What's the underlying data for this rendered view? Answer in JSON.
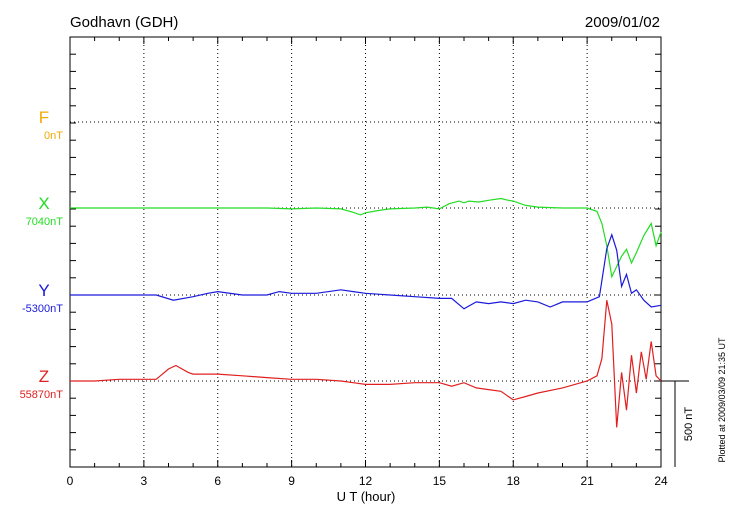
{
  "header": {
    "station": "Godhavn (GDH)",
    "date": "2009/01/02"
  },
  "footer": {
    "plotted_note": "Plotted at 2009/03/09 21:35 UT"
  },
  "chart_data": {
    "type": "line",
    "title": "Godhavn (GDH)",
    "date": "2009/01/02",
    "xlabel": "U T (hour)",
    "xlim": [
      0,
      24
    ],
    "xticks": [
      0,
      3,
      6,
      9,
      12,
      15,
      18,
      21,
      24
    ],
    "grid": true,
    "scale_bar_label": "500 nT",
    "scale_bar_nT": 500,
    "colors": {
      "F": "#f2a900",
      "X": "#22dd22",
      "Y": "#1a1adc",
      "Z": "#e02020"
    },
    "series": [
      {
        "name": "F",
        "baseline_label": "0nT",
        "baseline_nT": 0,
        "color": "#f2a900",
        "x": [],
        "values": []
      },
      {
        "name": "X",
        "baseline_label": "7040nT",
        "baseline_nT": 7040,
        "color": "#22dd22",
        "x": [
          0,
          1,
          2,
          3,
          4,
          5,
          6,
          7,
          8,
          9,
          10,
          11,
          11.5,
          11.8,
          12,
          12.5,
          13,
          14,
          14.5,
          15,
          15.4,
          15.8,
          16,
          16.2,
          16.6,
          17,
          17.5,
          17.8,
          18,
          18.5,
          19,
          20,
          21,
          21.4,
          21.6,
          21.8,
          22,
          22.2,
          22.4,
          22.6,
          22.8,
          23,
          23.3,
          23.6,
          23.8,
          24
        ],
        "values": [
          7040,
          7040,
          7040,
          7040,
          7040,
          7040,
          7040,
          7040,
          7040,
          7035,
          7040,
          7035,
          7015,
          7000,
          7012,
          7025,
          7035,
          7040,
          7045,
          7035,
          7065,
          7080,
          7070,
          7080,
          7075,
          7085,
          7095,
          7085,
          7080,
          7055,
          7045,
          7040,
          7040,
          7020,
          6950,
          6820,
          6640,
          6700,
          6760,
          6800,
          6720,
          6780,
          6880,
          6950,
          6820,
          6900
        ]
      },
      {
        "name": "Y",
        "baseline_label": "-5300nT",
        "baseline_nT": -5300,
        "color": "#1a1adc",
        "x": [
          0,
          2,
          3.5,
          4.2,
          5,
          5.6,
          6,
          7,
          8,
          8.5,
          9,
          10,
          11,
          11.5,
          12,
          13,
          14,
          15,
          15.5,
          16,
          16.5,
          17,
          17.5,
          18,
          18.5,
          19,
          19.5,
          20,
          21,
          21.5,
          21.8,
          22,
          22.2,
          22.4,
          22.6,
          22.8,
          23,
          23.3,
          23.6,
          24
        ],
        "values": [
          -5300,
          -5300,
          -5300,
          -5330,
          -5310,
          -5290,
          -5280,
          -5300,
          -5300,
          -5280,
          -5290,
          -5290,
          -5270,
          -5280,
          -5290,
          -5300,
          -5310,
          -5320,
          -5320,
          -5380,
          -5340,
          -5350,
          -5340,
          -5350,
          -5330,
          -5340,
          -5370,
          -5340,
          -5340,
          -5310,
          -5030,
          -4950,
          -5040,
          -5250,
          -5180,
          -5290,
          -5270,
          -5330,
          -5370,
          -5360
        ]
      },
      {
        "name": "Z",
        "baseline_label": "55870nT",
        "baseline_nT": 55870,
        "color": "#e02020",
        "x": [
          0,
          1,
          2,
          3,
          3.5,
          4,
          4.3,
          4.8,
          5,
          6,
          7,
          8,
          9,
          10,
          11,
          11.5,
          12,
          13,
          14,
          15,
          15.5,
          16,
          16.5,
          17,
          17.5,
          18,
          18.5,
          19,
          20,
          21,
          21.4,
          21.6,
          21.8,
          22,
          22.2,
          22.4,
          22.6,
          22.8,
          23,
          23.2,
          23.4,
          23.6,
          23.8,
          24
        ],
        "values": [
          55870,
          55870,
          55880,
          55880,
          55880,
          55940,
          55960,
          55920,
          55910,
          55910,
          55900,
          55890,
          55880,
          55880,
          55870,
          55860,
          55850,
          55850,
          55860,
          55860,
          55840,
          55860,
          55830,
          55820,
          55810,
          55760,
          55780,
          55800,
          55830,
          55870,
          55900,
          56000,
          56340,
          56200,
          55600,
          55920,
          55700,
          56020,
          55800,
          56040,
          55880,
          56100,
          55900,
          55870
        ]
      }
    ]
  }
}
